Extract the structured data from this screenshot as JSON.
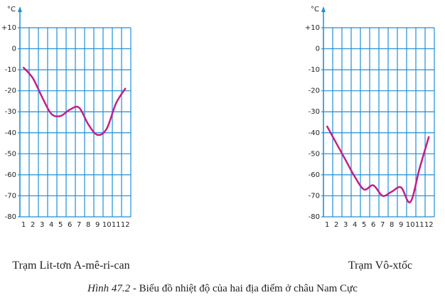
{
  "chart_data": [
    {
      "type": "line",
      "title": "Trạm Lit-tơn A-mê-ri-can",
      "y_label": "°C",
      "x": [
        1,
        2,
        3,
        4,
        5,
        6,
        7,
        8,
        9,
        10,
        11,
        12
      ],
      "values": [
        -9,
        -14,
        -23,
        -31,
        -32,
        -29,
        -28,
        -36,
        -41,
        -38,
        -26,
        -19
      ],
      "color": "#c0208a",
      "grid_color": "#1e8fd6",
      "xlim": [
        0.6,
        12.6
      ],
      "ylim": [
        -80,
        10
      ],
      "yticks": [
        {
          "value": 10,
          "label": "+10"
        },
        0,
        -10,
        -20,
        -30,
        -40,
        -50,
        -60,
        -70,
        -80
      ]
    },
    {
      "type": "line",
      "title": "Trạm Vô-xtốc",
      "y_label": "°C",
      "x": [
        1,
        2,
        3,
        4,
        5,
        6,
        7,
        8,
        9,
        10,
        11,
        12
      ],
      "values": [
        -37,
        -45,
        -53,
        -61,
        -67,
        -65,
        -70,
        -68,
        -66,
        -73,
        -57,
        -42
      ],
      "color": "#c0208a",
      "grid_color": "#1e8fd6",
      "xlim": [
        0.6,
        12.6
      ],
      "ylim": [
        -80,
        10
      ],
      "yticks": [
        {
          "value": 10,
          "label": "+10"
        },
        0,
        -10,
        -20,
        -30,
        -40,
        -50,
        -60,
        -70,
        -80
      ]
    }
  ],
  "caption": {
    "label": "Hình 47.2",
    "text": "- Biểu đồ nhiệt độ của hai địa điểm ở châu Nam Cực"
  }
}
